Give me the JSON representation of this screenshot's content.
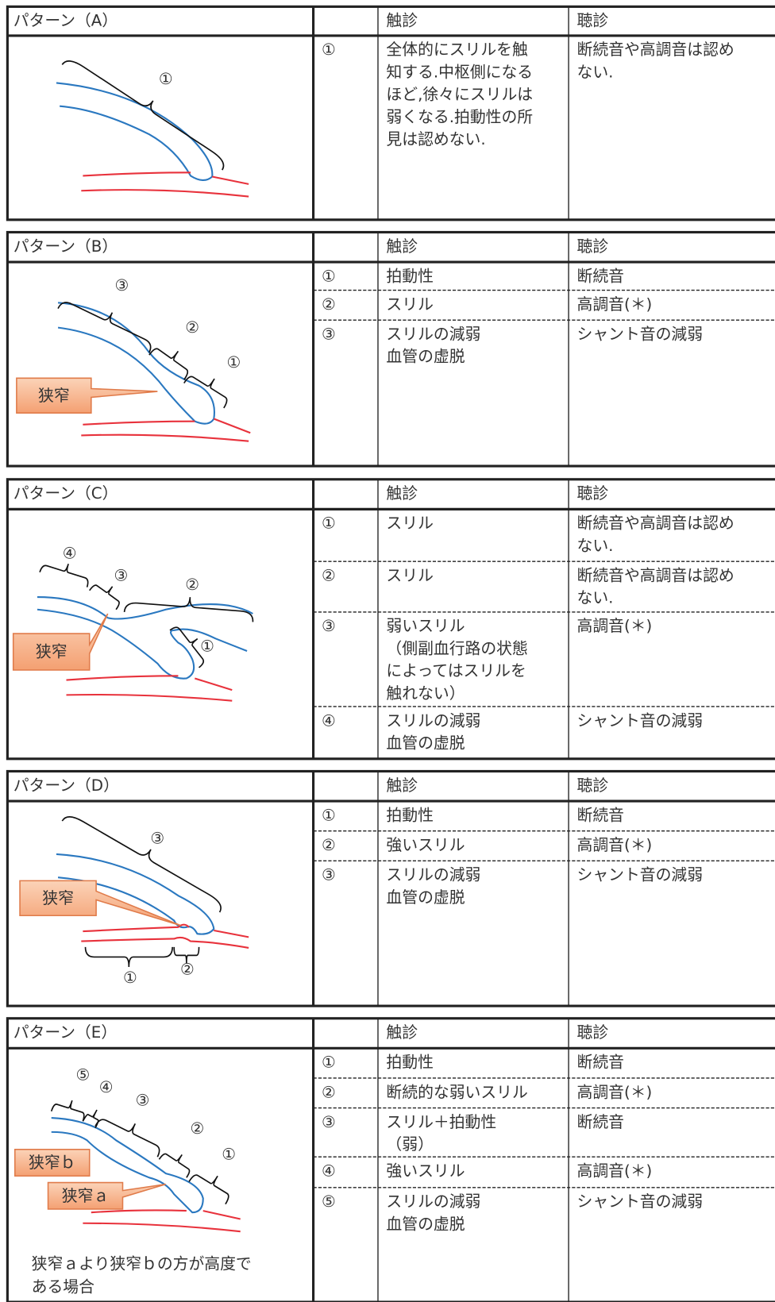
{
  "panels": [
    {
      "title": "パターン（A）",
      "header": {
        "palpation": "触診",
        "auscultation": "聴診"
      },
      "rows": [
        {
          "no": "①",
          "palpation": [
            "全体的にスリルを触",
            "知する.中枢側になる",
            "ほど,徐々にスリルは",
            "弱くなる.拍動性の所",
            "見は認めない."
          ],
          "auscultation": [
            "断続音や高調音は認め",
            "ない."
          ]
        }
      ],
      "labels": [
        "①"
      ]
    },
    {
      "title": "パターン（B）",
      "header": {
        "palpation": "触診",
        "auscultation": "聴診"
      },
      "rows": [
        {
          "no": "①",
          "palpation": [
            "拍動性"
          ],
          "auscultation": [
            "断続音"
          ]
        },
        {
          "no": "②",
          "palpation": [
            "スリル"
          ],
          "auscultation": [
            "高調音(＊)"
          ]
        },
        {
          "no": "③",
          "palpation": [
            "スリルの減弱",
            "血管の虚脱"
          ],
          "auscultation": [
            "シャント音の減弱"
          ]
        }
      ],
      "labels": [
        "③",
        "②",
        "①"
      ],
      "callouts": [
        "狭窄"
      ]
    },
    {
      "title": "パターン（C）",
      "header": {
        "palpation": "触診",
        "auscultation": "聴診"
      },
      "rows": [
        {
          "no": "①",
          "palpation": [
            "スリル"
          ],
          "auscultation": [
            "断続音や高調音は認め",
            "ない."
          ]
        },
        {
          "no": "②",
          "palpation": [
            "スリル"
          ],
          "auscultation": [
            "断続音や高調音は認め",
            "ない."
          ]
        },
        {
          "no": "③",
          "palpation": [
            "弱いスリル",
            "（側副血行路の状態",
            "によってはスリルを",
            "触れない）"
          ],
          "auscultation": [
            "高調音(＊)"
          ]
        },
        {
          "no": "④",
          "palpation": [
            "スリルの減弱",
            "血管の虚脱"
          ],
          "auscultation": [
            "シャント音の減弱"
          ]
        }
      ],
      "labels": [
        "④",
        "③",
        "②",
        "①"
      ],
      "callouts": [
        "狭窄"
      ]
    },
    {
      "title": "パターン（D）",
      "header": {
        "palpation": "触診",
        "auscultation": "聴診"
      },
      "rows": [
        {
          "no": "①",
          "palpation": [
            "拍動性"
          ],
          "auscultation": [
            "断続音"
          ]
        },
        {
          "no": "②",
          "palpation": [
            "強いスリル"
          ],
          "auscultation": [
            "高調音(＊)"
          ]
        },
        {
          "no": "③",
          "palpation": [
            "スリルの減弱",
            "血管の虚脱"
          ],
          "auscultation": [
            "シャント音の減弱"
          ]
        }
      ],
      "labels": [
        "③",
        "①",
        "②"
      ],
      "callouts": [
        "狭窄"
      ]
    },
    {
      "title": "パターン（E）",
      "header": {
        "palpation": "触診",
        "auscultation": "聴診"
      },
      "rows": [
        {
          "no": "①",
          "palpation": [
            "拍動性"
          ],
          "auscultation": [
            "断続音"
          ]
        },
        {
          "no": "②",
          "palpation": [
            "断続的な弱いスリル"
          ],
          "auscultation": [
            "高調音(＊)"
          ]
        },
        {
          "no": "③",
          "palpation": [
            "スリル＋拍動性",
            "（弱）"
          ],
          "auscultation": [
            "断続音"
          ]
        },
        {
          "no": "④",
          "palpation": [
            "強いスリル"
          ],
          "auscultation": [
            "高調音(＊)"
          ]
        },
        {
          "no": "⑤",
          "palpation": [
            "スリルの減弱",
            "血管の虚脱"
          ],
          "auscultation": [
            "シャント音の減弱"
          ]
        }
      ],
      "labels": [
        "⑤",
        "④",
        "③",
        "②",
        "①"
      ],
      "callouts": [
        "狭窄ｂ",
        "狭窄ａ"
      ],
      "note": [
        "狭窄ａより狭窄ｂの方が高度で",
        "ある場合"
      ]
    }
  ]
}
